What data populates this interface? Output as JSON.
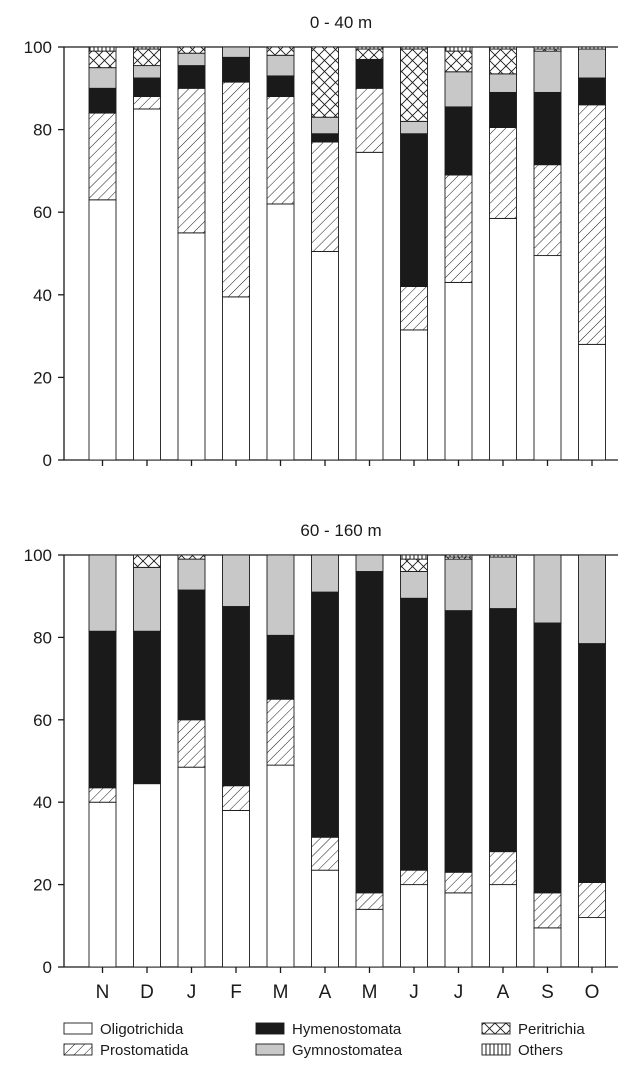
{
  "chart_data": [
    {
      "type": "bar",
      "stacked": true,
      "title": "0 - 40 m",
      "xlabel": "",
      "ylabel": "",
      "ylim": [
        0,
        100
      ],
      "yticks": [
        0,
        20,
        40,
        60,
        80,
        100
      ],
      "grid": false,
      "categories": [
        "N",
        "D",
        "J",
        "F",
        "M",
        "A",
        "M",
        "J",
        "J",
        "A",
        "S",
        "O"
      ],
      "series": [
        {
          "name": "Oligotrichida",
          "values": [
            63,
            85,
            55,
            39.5,
            62,
            50.5,
            74.5,
            31.5,
            43,
            58.5,
            49.5,
            28
          ]
        },
        {
          "name": "Prostomatida",
          "values": [
            21,
            3,
            35,
            52,
            26,
            26.5,
            15.5,
            10.5,
            26,
            22,
            22,
            58
          ]
        },
        {
          "name": "Hymenostomata",
          "values": [
            6,
            4.5,
            5.5,
            6,
            5,
            2,
            7,
            37,
            16.5,
            8.5,
            17.5,
            6.5
          ]
        },
        {
          "name": "Gymnostomatea",
          "values": [
            5,
            3,
            3,
            2.5,
            5,
            4,
            0,
            3,
            8.5,
            4.5,
            10,
            7
          ]
        },
        {
          "name": "Peritrichia",
          "values": [
            4,
            4,
            1.5,
            0,
            2,
            17,
            2.5,
            17.5,
            5,
            6,
            0.5,
            0
          ]
        },
        {
          "name": "Others",
          "values": [
            1,
            0.5,
            0,
            0,
            0,
            0,
            0.5,
            0.5,
            1,
            0.5,
            0.5,
            0.5
          ]
        }
      ]
    },
    {
      "type": "bar",
      "stacked": true,
      "title": "60 - 160 m",
      "xlabel": "",
      "ylabel": "",
      "ylim": [
        0,
        100
      ],
      "yticks": [
        0,
        20,
        40,
        60,
        80,
        100
      ],
      "grid": false,
      "categories": [
        "N",
        "D",
        "J",
        "F",
        "M",
        "A",
        "M",
        "J",
        "J",
        "A",
        "S",
        "O"
      ],
      "series": [
        {
          "name": "Oligotrichida",
          "values": [
            40,
            44.5,
            48.5,
            38,
            49,
            23.5,
            14,
            20,
            18,
            20,
            9.5,
            12
          ]
        },
        {
          "name": "Prostomatida",
          "values": [
            3.5,
            0,
            11.5,
            6,
            16,
            8,
            4,
            3.5,
            5,
            8,
            8.5,
            8.5
          ]
        },
        {
          "name": "Hymenostomata",
          "values": [
            38,
            37,
            31.5,
            43.5,
            15.5,
            59.5,
            78,
            66,
            63.5,
            59,
            65.5,
            58
          ]
        },
        {
          "name": "Gymnostomatea",
          "values": [
            18.5,
            15.5,
            7.5,
            12.5,
            19.5,
            9,
            4,
            6.5,
            12.5,
            12.5,
            16.5,
            21.5
          ]
        },
        {
          "name": "Peritrichia",
          "values": [
            0,
            3,
            1,
            0,
            0,
            0,
            0,
            3,
            0.5,
            0,
            0,
            0
          ]
        },
        {
          "name": "Others",
          "values": [
            0,
            0,
            0,
            0,
            0,
            0,
            0,
            1,
            0.5,
            0.5,
            0,
            0
          ]
        }
      ]
    }
  ],
  "legend": [
    {
      "label": "Oligotrichida",
      "style": "white"
    },
    {
      "label": "Prostomatida",
      "style": "diagonal"
    },
    {
      "label": "Hymenostomata",
      "style": "black"
    },
    {
      "label": "Gymnostomatea",
      "style": "gray"
    },
    {
      "label": "Peritrichia",
      "style": "crosshatch"
    },
    {
      "label": "Others",
      "style": "vertical"
    }
  ],
  "colors": {
    "outline": "#1a1a1a",
    "white": "#ffffff",
    "black": "#1a1a1a",
    "gray": "#c8c8c8"
  }
}
